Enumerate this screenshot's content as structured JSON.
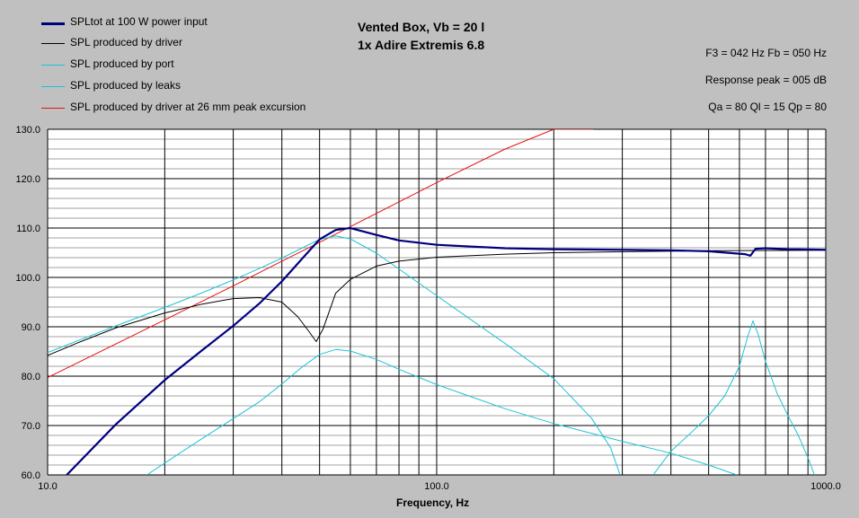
{
  "header": {
    "title_line1": "Vented Box, Vb = 20 l",
    "title_line2": "1x Adire Extremis 6.8",
    "info_line1": "F3 = 042 Hz  Fb = 050 Hz",
    "info_line2": "Response peak = 005 dB",
    "info_line3": "Qa = 80  Ql = 15  Qp = 80"
  },
  "legend": [
    {
      "label": "SPLtot at 100 W power input",
      "color": "#00007f"
    },
    {
      "label": "SPL produced by driver",
      "color": "#000000"
    },
    {
      "label": "SPL produced by port",
      "color": "#19c3d6"
    },
    {
      "label": "SPL produced by leaks",
      "color": "#19c3d6"
    },
    {
      "label": "SPL produced by driver at 26 mm peak excursion",
      "color": "#e81010"
    }
  ],
  "chart_data": {
    "type": "line",
    "xlabel": "Frequency, Hz",
    "ylabel": "",
    "xscale": "log",
    "xlim": [
      10,
      1000
    ],
    "ylim": [
      60,
      130
    ],
    "x_ticks": [
      "10.0",
      "100.0",
      "1000.0"
    ],
    "y_ticks": [
      "60.0",
      "70.0",
      "80.0",
      "90.0",
      "100.0",
      "110.0",
      "120.0",
      "130.0"
    ],
    "grid": true,
    "background": "#ffffff",
    "series": [
      {
        "name": "SPLtot at 100 W power input",
        "color": "#00007f",
        "x": [
          11.2,
          15,
          20,
          25,
          30,
          35,
          40,
          45,
          50,
          55,
          60,
          70,
          80,
          100,
          150,
          200,
          300,
          400,
          500,
          620,
          640,
          660,
          700,
          800,
          1000
        ],
        "y": [
          60,
          70.3,
          79.2,
          85.3,
          90.2,
          94.7,
          99.2,
          103.7,
          107.7,
          109.6,
          110.0,
          108.6,
          107.5,
          106.6,
          105.9,
          105.7,
          105.6,
          105.5,
          105.3,
          104.7,
          104.4,
          105.8,
          105.9,
          105.7,
          105.6
        ]
      },
      {
        "name": "SPL produced by driver",
        "color": "#000000",
        "x": [
          10,
          12,
          15,
          20,
          25,
          30,
          35,
          40,
          44,
          47,
          49,
          51,
          55,
          60,
          70,
          80,
          100,
          150,
          200,
          300,
          500,
          1000
        ],
        "y": [
          84.2,
          86.8,
          89.8,
          92.8,
          94.6,
          95.7,
          95.9,
          95,
          92,
          89,
          87.0,
          89.5,
          96.8,
          99.6,
          102.3,
          103.3,
          104.1,
          104.7,
          105.0,
          105.2,
          105.4,
          105.5
        ]
      },
      {
        "name": "SPL produced by port",
        "color": "#19c3d6",
        "x": [
          10,
          15,
          20,
          25,
          30,
          35,
          40,
          45,
          50,
          55,
          60,
          70,
          80,
          100,
          150,
          200,
          250,
          280,
          296
        ],
        "y": [
          84.8,
          90.2,
          93.9,
          96.9,
          99.5,
          101.8,
          103.9,
          105.9,
          107.7,
          108.4,
          107.8,
          104.9,
          101.7,
          96.3,
          86.6,
          79.5,
          71.5,
          65.5,
          60
        ]
      },
      {
        "name": "SPL produced by leaks",
        "color": "#19c3d6",
        "x": [
          18,
          20,
          25,
          30,
          35,
          40,
          45,
          50,
          55,
          60,
          70,
          80,
          100,
          150,
          200,
          300,
          400,
          500,
          590
        ],
        "y": [
          60,
          62.4,
          67.4,
          71.4,
          74.8,
          78.4,
          81.8,
          84.4,
          85.4,
          85.1,
          83.4,
          81.4,
          78.3,
          73.4,
          70.4,
          66.8,
          64.4,
          62.0,
          60
        ]
      },
      {
        "name": "SPL produced by leaks (high)",
        "color": "#19c3d6",
        "x": [
          360,
          400,
          450,
          500,
          550,
          600,
          630,
          650,
          670,
          700,
          750,
          800,
          850,
          900,
          935
        ],
        "y": [
          60,
          64.8,
          68.5,
          72.0,
          76.0,
          82.0,
          88.0,
          91.2,
          88.5,
          83.0,
          76.5,
          72.0,
          68.0,
          63.5,
          60
        ]
      },
      {
        "name": "SPL produced by driver at 26 mm peak excursion",
        "color": "#e81010",
        "x": [
          10,
          20,
          30,
          40,
          50,
          60,
          80,
          100,
          150,
          200,
          253
        ],
        "y": [
          79.7,
          91.4,
          98.3,
          103.3,
          107.1,
          110.3,
          115.3,
          119.2,
          126.0,
          130.0,
          130.0
        ]
      }
    ]
  }
}
